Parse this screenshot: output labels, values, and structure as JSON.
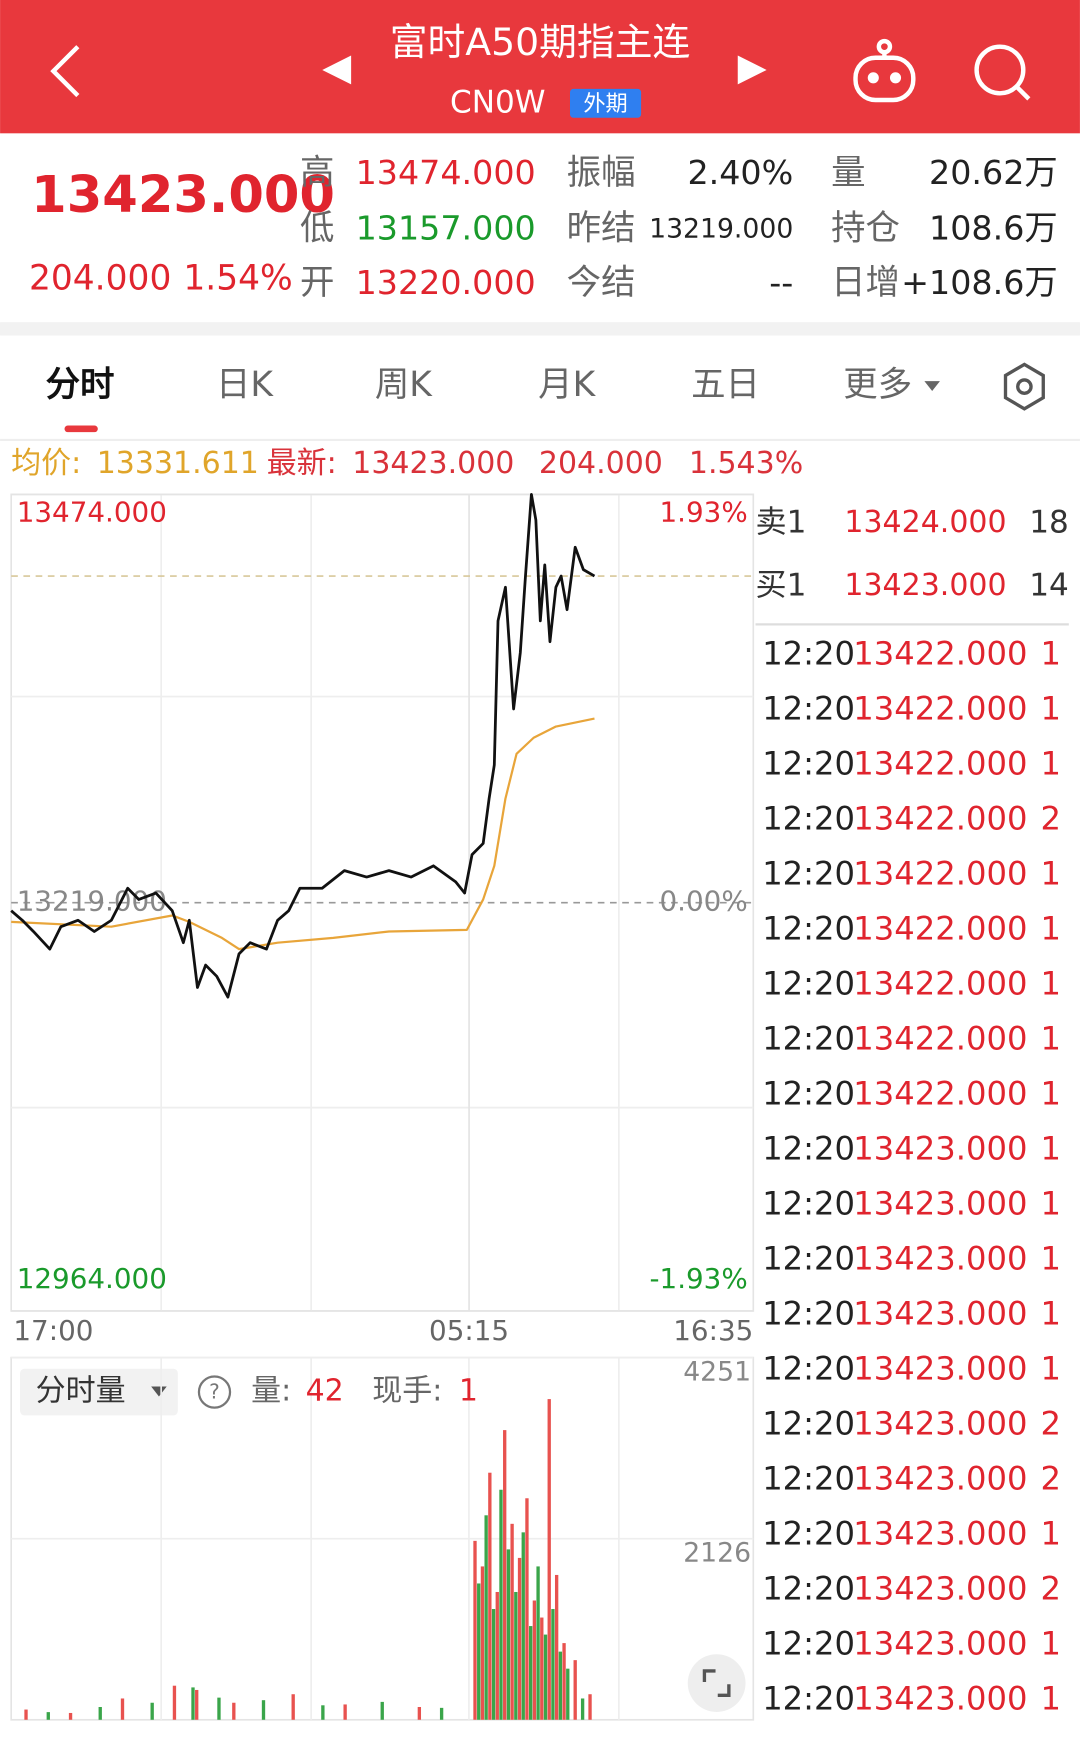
{
  "header": {
    "title": "富时A50期指主连",
    "code": "CN0W",
    "badge": "外期"
  },
  "quote": {
    "price": "13423.000",
    "change": "204.000",
    "change_pct": "1.54%",
    "stats": [
      {
        "label": "高",
        "value": "13474.000"
      },
      {
        "label": "振幅",
        "value": "2.40%"
      },
      {
        "label": "量",
        "value": "20.62万"
      },
      {
        "label": "低",
        "value": "13157.000"
      },
      {
        "label": "昨结",
        "value": "13219.000"
      },
      {
        "label": "持仓",
        "value": "108.6万"
      },
      {
        "label": "开",
        "value": "13220.000"
      },
      {
        "label": "今结",
        "value": "--"
      },
      {
        "label": "日增",
        "value": "+108.6万"
      }
    ]
  },
  "tabs": [
    "分时",
    "日K",
    "周K",
    "月K",
    "五日",
    "更多"
  ],
  "info": {
    "avg_label": "均价:",
    "avg": "13331.611",
    "latest_label": "最新:",
    "latest": "13423.000",
    "change": "204.000",
    "change_pct": "1.543%"
  },
  "order_book": [
    {
      "label": "卖1",
      "price": "13424.000",
      "volume": "18"
    },
    {
      "label": "买1",
      "price": "13423.000",
      "volume": "14"
    }
  ],
  "volume_info": {
    "title": "分时量",
    "vol_label": "量:",
    "vol": "42",
    "hand_label": "现手:",
    "hand": "1"
  },
  "trades": [
    {
      "time": "12:20",
      "price": "13422.000",
      "volume": "1"
    },
    {
      "time": "12:20",
      "price": "13422.000",
      "volume": "1"
    },
    {
      "time": "12:20",
      "price": "13422.000",
      "volume": "1"
    },
    {
      "time": "12:20",
      "price": "13422.000",
      "volume": "2"
    },
    {
      "time": "12:20",
      "price": "13422.000",
      "volume": "1"
    },
    {
      "time": "12:20",
      "price": "13422.000",
      "volume": "1"
    },
    {
      "time": "12:20",
      "price": "13422.000",
      "volume": "1"
    },
    {
      "time": "12:20",
      "price": "13422.000",
      "volume": "1"
    },
    {
      "time": "12:20",
      "price": "13422.000",
      "volume": "1"
    },
    {
      "time": "12:20",
      "price": "13423.000",
      "volume": "1"
    },
    {
      "time": "12:20",
      "price": "13423.000",
      "volume": "1"
    },
    {
      "time": "12:20",
      "price": "13423.000",
      "volume": "1"
    },
    {
      "time": "12:20",
      "price": "13423.000",
      "volume": "1"
    },
    {
      "time": "12:20",
      "price": "13423.000",
      "volume": "1"
    },
    {
      "time": "12:20",
      "price": "13423.000",
      "volume": "2"
    },
    {
      "time": "12:20",
      "price": "13423.000",
      "volume": "2"
    },
    {
      "time": "12:20",
      "price": "13423.000",
      "volume": "1"
    },
    {
      "time": "12:20",
      "price": "13423.000",
      "volume": "2"
    },
    {
      "time": "12:20",
      "price": "13423.000",
      "volume": "1"
    },
    {
      "time": "12:20",
      "price": "13423.000",
      "volume": "1"
    }
  ],
  "chart_data": [
    {
      "type": "line",
      "xlim": [
        0,
        100
      ],
      "xticks": [
        {
          "value": 0,
          "label": "17:00"
        },
        {
          "value": 61.7,
          "label": "05:15"
        },
        {
          "value": 100,
          "label": "16:35"
        }
      ],
      "ylim": [
        12964,
        13474
      ],
      "yticks": [
        {
          "value": 13474,
          "label": "13474.000"
        },
        {
          "value": 13219,
          "label": "13219.000"
        },
        {
          "value": 12964,
          "label": "12964.000"
        }
      ],
      "y2lim": [
        -1.93,
        1.93
      ],
      "y2ticks": [
        {
          "value": 1.93,
          "label": "1.93%"
        },
        {
          "value": 0,
          "label": "0.00%"
        },
        {
          "value": -1.93,
          "label": "-1.93%"
        }
      ],
      "series": [
        {
          "color": "#111111",
          "x": [
            0,
            1.5,
            3,
            5.2,
            6.7,
            9,
            11.2,
            13.5,
            15.7,
            17.2,
            19.5,
            21.7,
            23.2,
            24,
            25.1,
            26.2,
            27.7,
            29.2,
            30.7,
            32.2,
            34.4,
            35.9,
            37.4,
            38.9,
            41.9,
            44.9,
            47.9,
            50.9,
            53.9,
            56.9,
            59.9,
            61.1,
            62.1,
            63.6,
            64.4,
            65.1,
            65.6,
            66.6,
            67.7,
            68.6,
            69.3,
            70.1,
            70.7,
            71.3,
            71.9,
            72.6,
            73.4,
            74.1,
            74.9,
            76,
            77.1,
            78.6
          ],
          "values": [
            13214,
            13208,
            13201,
            13190,
            13204,
            13208,
            13201,
            13208,
            13228,
            13221,
            13225,
            13214,
            13194,
            13208,
            13166,
            13180,
            13173,
            13160,
            13187,
            13194,
            13190,
            13208,
            13214,
            13228,
            13228,
            13239,
            13235,
            13239,
            13235,
            13242,
            13232,
            13225,
            13249,
            13256,
            13284,
            13305,
            13395,
            13416,
            13340,
            13375,
            13423,
            13474,
            13458,
            13395,
            13430,
            13382,
            13416,
            13423,
            13402,
            13441,
            13427,
            13423
          ]
        },
        {
          "color": "#e8a53a",
          "x": [
            0,
            13.5,
            21.7,
            24,
            28.4,
            30.7,
            35.9,
            43.4,
            50.9,
            61.4,
            63.6,
            65.1,
            66.6,
            68.1,
            70.4,
            73.4,
            78.6
          ],
          "values": [
            13207,
            13204,
            13211,
            13207,
            13197,
            13190,
            13194,
            13197,
            13201,
            13202,
            13221,
            13242,
            13284,
            13312,
            13322,
            13329,
            13334
          ]
        }
      ]
    },
    {
      "type": "bar",
      "xlim": [
        0,
        100
      ],
      "ylim": [
        0,
        4251
      ],
      "yticks": [
        4251,
        2126
      ],
      "series": [
        {
          "color": "#e8524f",
          "x": [
            2,
            8,
            15,
            22,
            25,
            30,
            38,
            45,
            55,
            62.5,
            63.5,
            64.5,
            65.5,
            66.5,
            67.5,
            68.5,
            69.5,
            70.5,
            71.5,
            72.5,
            73.5,
            74.5,
            76,
            78
          ],
          "values": [
            120,
            80,
            250,
            400,
            350,
            200,
            300,
            180,
            150,
            2100,
            1800,
            2900,
            1500,
            3400,
            2300,
            1900,
            2600,
            1400,
            1200,
            3764,
            1700,
            900,
            700,
            300
          ]
        },
        {
          "color": "#3aa54a",
          "x": [
            5,
            12,
            19,
            24.5,
            28,
            34,
            42,
            50,
            58,
            63,
            64,
            65,
            66,
            67,
            68,
            69,
            70,
            71,
            72,
            73,
            74,
            75,
            77
          ],
          "values": [
            90,
            150,
            200,
            380,
            260,
            230,
            170,
            210,
            140,
            1600,
            2400,
            1300,
            2700,
            2000,
            1500,
            2200,
            1100,
            1800,
            1000,
            1300,
            800,
            600,
            250
          ]
        }
      ]
    }
  ]
}
